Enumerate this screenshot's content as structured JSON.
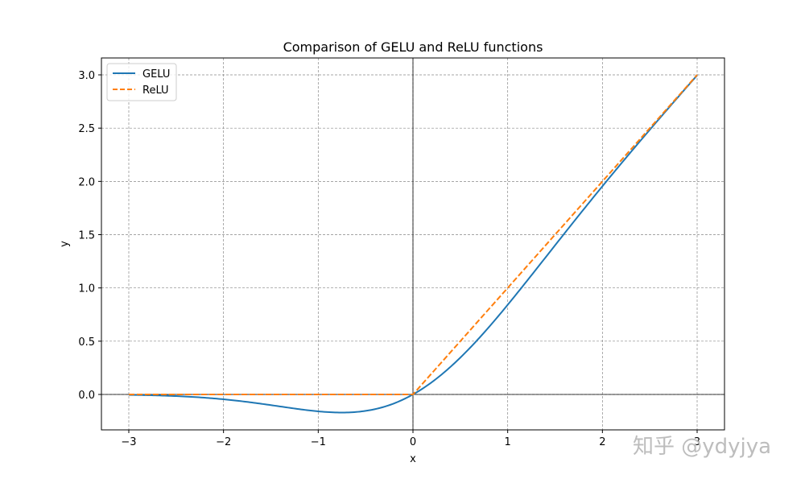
{
  "chart_data": {
    "type": "line",
    "title": "Comparison of GELU and ReLU functions",
    "xlabel": "x",
    "ylabel": "y",
    "xlim": [
      -3.3,
      3.3
    ],
    "ylim": [
      -0.33,
      3.15
    ],
    "xticks": [
      "−3",
      "−2",
      "−1",
      "0",
      "1",
      "2",
      "3"
    ],
    "yticks": [
      "0.0",
      "0.5",
      "1.0",
      "1.5",
      "2.0",
      "2.5",
      "3.0"
    ],
    "grid": true,
    "legend_position": "upper left",
    "x": [
      -3,
      -2.5,
      -2,
      -1.5,
      -1,
      -0.75,
      -0.5,
      -0.25,
      0,
      0.25,
      0.5,
      0.75,
      1,
      1.5,
      2,
      2.5,
      3
    ],
    "series": [
      {
        "name": "GELU",
        "color": "#1f77b4",
        "style": "solid",
        "values": [
          -0.004,
          -0.015,
          -0.045,
          -0.1,
          -0.159,
          -0.17,
          -0.154,
          -0.1,
          0,
          0.15,
          0.346,
          0.58,
          0.841,
          1.4,
          1.955,
          2.485,
          2.996
        ]
      },
      {
        "name": "ReLU",
        "color": "#ff7f0e",
        "style": "dashed",
        "values": [
          0,
          0,
          0,
          0,
          0,
          0,
          0,
          0,
          0,
          0.25,
          0.5,
          0.75,
          1,
          1.5,
          2,
          2.5,
          3
        ]
      }
    ]
  },
  "watermark": "知乎 @ydyjya"
}
